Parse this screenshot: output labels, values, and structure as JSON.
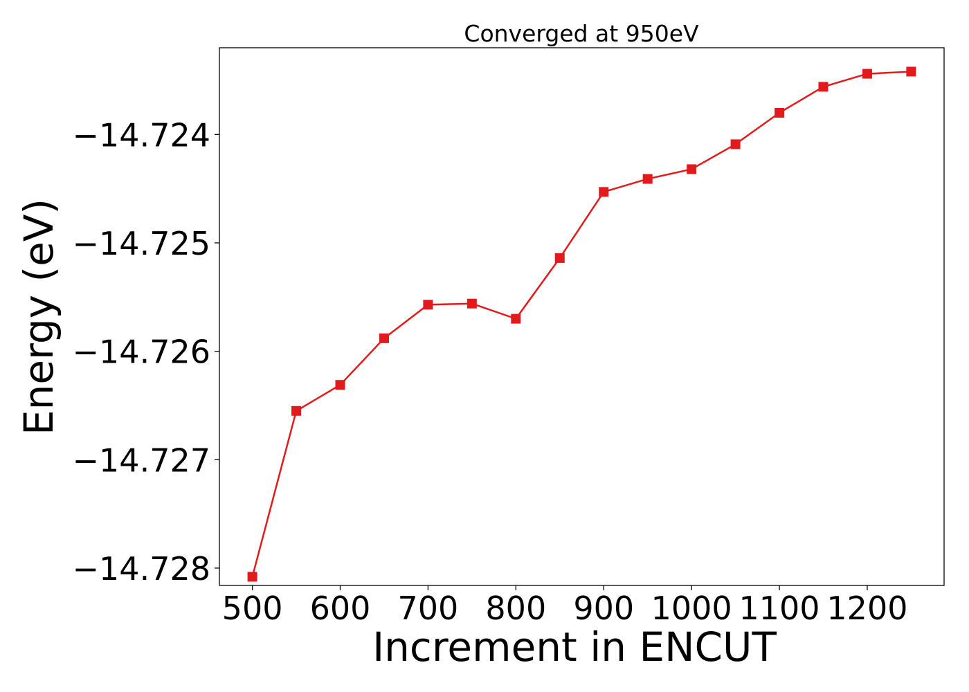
{
  "chart_data": {
    "type": "line",
    "title": "Converged at 950eV",
    "xlabel": "Increment in ENCUT",
    "ylabel": "Energy (eV)",
    "x": [
      500,
      550,
      600,
      650,
      700,
      750,
      800,
      850,
      900,
      950,
      1000,
      1050,
      1100,
      1150,
      1200,
      1250
    ],
    "series": [
      {
        "values": [
          -14.72808,
          -14.72655,
          -14.72631,
          -14.72588,
          -14.72557,
          -14.72556,
          -14.7257,
          -14.72514,
          -14.72453,
          -14.72441,
          -14.72432,
          -14.72409,
          -14.7238,
          -14.72356,
          -14.72344,
          -14.72342
        ],
        "color": "#e31a1c",
        "marker": "square"
      }
    ],
    "xticks": [
      500,
      600,
      700,
      800,
      900,
      1000,
      1100,
      1200
    ],
    "xtick_labels": [
      "500",
      "600",
      "700",
      "800",
      "900",
      "1000",
      "1100",
      "1200"
    ],
    "yticks": [
      -14.728,
      -14.727,
      -14.726,
      -14.725,
      -14.724
    ],
    "ytick_labels": [
      "−14.728",
      "−14.727",
      "−14.726",
      "−14.725",
      "−14.724"
    ],
    "xlim": [
      462.5,
      1287.5
    ],
    "ylim": [
      -14.72816,
      -14.7232
    ],
    "grid": false,
    "legend": false
  }
}
